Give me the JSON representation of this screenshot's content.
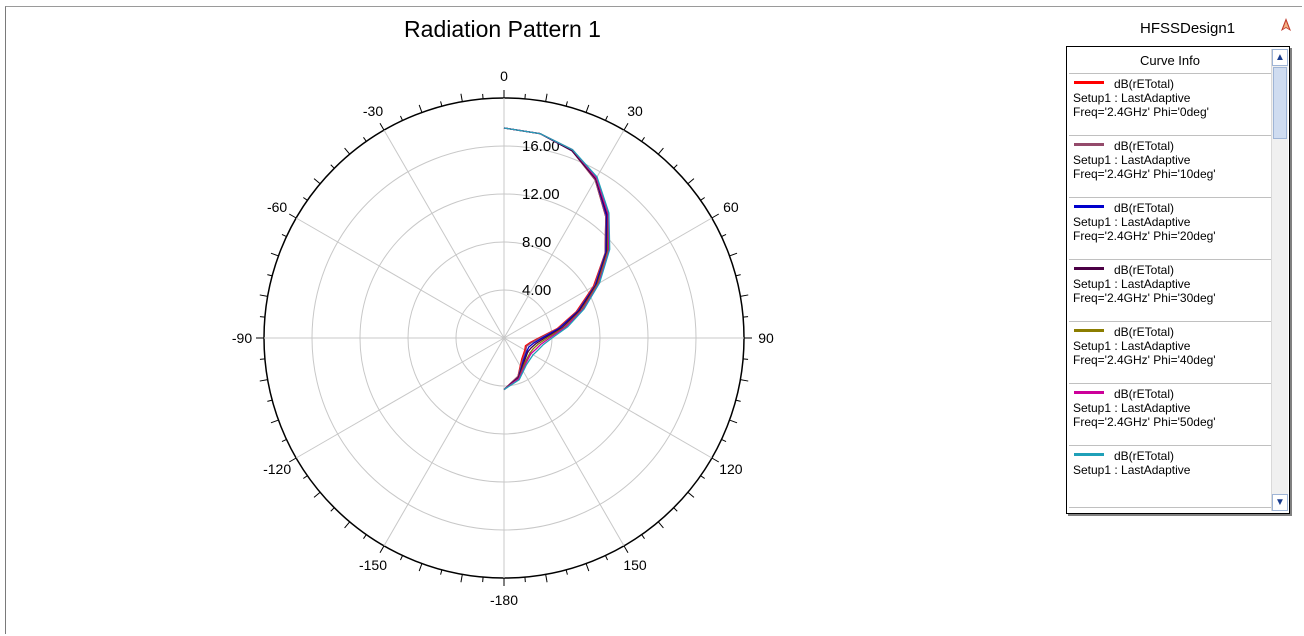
{
  "window": {
    "design_name": "HFSSDesign1",
    "design_icon": "hfss-design-icon"
  },
  "chart_data": {
    "type": "polar",
    "title": "Radiation Pattern 1",
    "angle_unit": "deg",
    "angle_ticks": [
      0,
      30,
      60,
      90,
      120,
      150,
      -180,
      -150,
      -120,
      -90,
      -60,
      -30
    ],
    "radial_range": [
      0,
      20
    ],
    "radial_ticks": [
      4.0,
      8.0,
      12.0,
      16.0
    ],
    "radial_tick_labels": [
      "4.00",
      "8.00",
      "12.00",
      "16.00"
    ],
    "grid": true,
    "series": [
      {
        "name": "dB(rETotal) Setup1 : LastAdaptive Freq='2.4GHz' Phi='0deg'",
        "color": "#ff0000",
        "theta": [
          0,
          10,
          20,
          30,
          40,
          50,
          60,
          70,
          80,
          90,
          100,
          110,
          120,
          140,
          160,
          180
        ],
        "r": [
          17.5,
          17.3,
          16.6,
          15.2,
          13.2,
          11.0,
          8.6,
          6.4,
          4.5,
          2.9,
          2.2,
          1.9,
          2.0,
          2.3,
          3.4,
          4.3
        ]
      },
      {
        "name": "dB(rETotal) Setup1 : LastAdaptive Freq='2.4GHz' Phi='10deg'",
        "color": "#944a6b",
        "theta": [
          0,
          10,
          20,
          30,
          40,
          50,
          60,
          70,
          80,
          90,
          100,
          110,
          120,
          140,
          160,
          180
        ],
        "r": [
          17.5,
          17.3,
          16.6,
          15.2,
          13.2,
          11.0,
          8.7,
          6.5,
          4.6,
          3.0,
          2.3,
          2.0,
          2.1,
          2.4,
          3.4,
          4.3
        ]
      },
      {
        "name": "dB(rETotal) Setup1 : LastAdaptive Freq='2.4GHz' Phi='20deg'",
        "color": "#0000cc",
        "theta": [
          0,
          10,
          20,
          30,
          40,
          50,
          60,
          70,
          80,
          90,
          100,
          110,
          120,
          140,
          160,
          180
        ],
        "r": [
          17.5,
          17.3,
          16.6,
          15.3,
          13.3,
          11.1,
          8.8,
          6.6,
          4.7,
          3.2,
          2.5,
          2.2,
          2.2,
          2.5,
          3.5,
          4.3
        ]
      },
      {
        "name": "dB(rETotal) Setup1 : LastAdaptive Freq='2.4GHz' Phi='30deg'",
        "color": "#4b0045",
        "theta": [
          0,
          10,
          20,
          30,
          40,
          50,
          60,
          70,
          80,
          90,
          100,
          110,
          120,
          140,
          160,
          180
        ],
        "r": [
          17.5,
          17.3,
          16.6,
          15.3,
          13.4,
          11.2,
          8.9,
          6.7,
          4.9,
          3.4,
          2.7,
          2.4,
          2.3,
          2.6,
          3.5,
          4.3
        ]
      },
      {
        "name": "dB(rETotal) Setup1 : LastAdaptive Freq='2.4GHz' Phi='40deg'",
        "color": "#8b7d00",
        "theta": [
          0,
          10,
          20,
          30,
          40,
          50,
          60,
          70,
          80,
          90,
          100,
          110,
          120,
          140,
          160,
          180
        ],
        "r": [
          17.5,
          17.3,
          16.7,
          15.4,
          13.5,
          11.3,
          9.0,
          6.9,
          5.1,
          3.6,
          2.9,
          2.6,
          2.5,
          2.7,
          3.6,
          4.3
        ]
      },
      {
        "name": "dB(rETotal) Setup1 : LastAdaptive Freq='2.4GHz' Phi='50deg'",
        "color": "#cc0099",
        "theta": [
          0,
          10,
          20,
          30,
          40,
          50,
          60,
          70,
          80,
          90,
          100,
          110,
          120,
          140,
          160,
          180
        ],
        "r": [
          17.5,
          17.3,
          16.7,
          15.4,
          13.5,
          11.4,
          9.1,
          7.0,
          5.2,
          3.8,
          3.1,
          2.8,
          2.6,
          2.8,
          3.6,
          4.3
        ]
      },
      {
        "name": "dB(rETotal) Setup1 : LastAdaptive",
        "color": "#1fa0b8",
        "theta": [
          0,
          10,
          20,
          30,
          40,
          50,
          60,
          70,
          80,
          90,
          100,
          110,
          120,
          140,
          160,
          180
        ],
        "r": [
          17.5,
          17.3,
          16.7,
          15.5,
          13.6,
          11.5,
          9.2,
          7.1,
          5.4,
          4.0,
          3.3,
          3.0,
          2.8,
          2.9,
          3.7,
          4.3
        ]
      }
    ]
  },
  "legend": {
    "header": "Curve Info",
    "items": [
      {
        "line1": "dB(rETotal)",
        "line2": "Setup1 : LastAdaptive",
        "line3": "Freq='2.4GHz' Phi='0deg'",
        "color": "#ff0000"
      },
      {
        "line1": "dB(rETotal)",
        "line2": "Setup1 : LastAdaptive",
        "line3": "Freq='2.4GHz' Phi='10deg'",
        "color": "#944a6b"
      },
      {
        "line1": "dB(rETotal)",
        "line2": "Setup1 : LastAdaptive",
        "line3": "Freq='2.4GHz' Phi='20deg'",
        "color": "#0000cc"
      },
      {
        "line1": "dB(rETotal)",
        "line2": "Setup1 : LastAdaptive",
        "line3": "Freq='2.4GHz' Phi='30deg'",
        "color": "#4b0045"
      },
      {
        "line1": "dB(rETotal)",
        "line2": "Setup1 : LastAdaptive",
        "line3": "Freq='2.4GHz' Phi='40deg'",
        "color": "#8b7d00"
      },
      {
        "line1": "dB(rETotal)",
        "line2": "Setup1 : LastAdaptive",
        "line3": "Freq='2.4GHz' Phi='50deg'",
        "color": "#cc0099"
      },
      {
        "line1": "dB(rETotal)",
        "line2": "Setup1 : LastAdaptive",
        "line3": "",
        "color": "#1fa0b8"
      }
    ],
    "scrollbar_icons": {
      "up": "scroll-up-arrow-icon",
      "down": "scroll-down-arrow-icon"
    }
  }
}
